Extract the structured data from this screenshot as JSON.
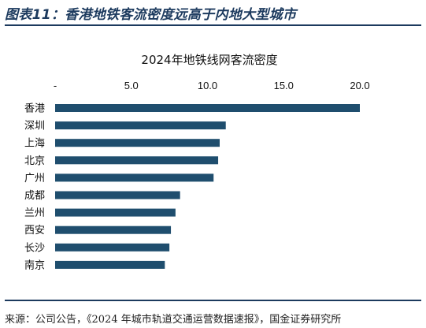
{
  "figure": {
    "title": "图表11：香港地铁客流密度远高于内地大型城市",
    "source": "来源：公司公告，《2024 年城市轨道交通运营数据速报》，国金证券研究所"
  },
  "colors": {
    "bar": "#1f4e6e",
    "rule": "#1c3a5e"
  },
  "chart_data": {
    "type": "bar",
    "orientation": "horizontal",
    "title": "2024年地铁线网客流密度",
    "xlabel": "",
    "ylabel": "",
    "xlim": [
      0,
      20
    ],
    "ticks": [
      0,
      5,
      10,
      15,
      20
    ],
    "tick_labels": [
      "-",
      "5.0",
      "10.0",
      "15.0",
      "20.0"
    ],
    "axis_position": "top",
    "grid": false,
    "categories": [
      "香港",
      "深圳",
      "上海",
      "北京",
      "广州",
      "成都",
      "兰州",
      "西安",
      "长沙",
      "南京"
    ],
    "values": [
      20.0,
      11.2,
      10.8,
      10.7,
      10.4,
      8.2,
      7.9,
      7.6,
      7.5,
      7.2
    ]
  }
}
